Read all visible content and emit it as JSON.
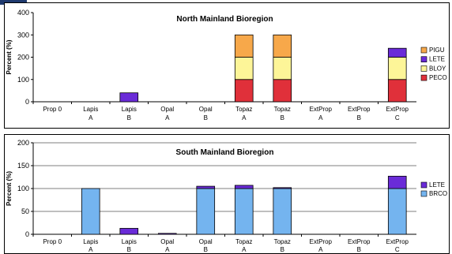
{
  "chart_data": [
    {
      "type": "bar",
      "stacked": true,
      "title": "North Mainland Bioregion",
      "ylabel": "Percent (%)",
      "ylim": [
        0,
        400
      ],
      "yticks": [
        0,
        100,
        200,
        300,
        400
      ],
      "categories": [
        [
          "Prop 0"
        ],
        [
          "Lapis",
          "A"
        ],
        [
          "Lapis",
          "B"
        ],
        [
          "Opal",
          "A"
        ],
        [
          "Opal",
          "B"
        ],
        [
          "Topaz",
          "A"
        ],
        [
          "Topaz",
          "B"
        ],
        [
          "ExtProp",
          "A"
        ],
        [
          "ExtProp",
          "B"
        ],
        [
          "ExtProp",
          "C"
        ]
      ],
      "series": [
        {
          "name": "PECO",
          "color": "#e0303a",
          "values": [
            0,
            0,
            0,
            0,
            0,
            100,
            100,
            0,
            0,
            100
          ]
        },
        {
          "name": "BLOY",
          "color": "#fdf598",
          "values": [
            0,
            0,
            0,
            0,
            0,
            100,
            100,
            0,
            0,
            100
          ]
        },
        {
          "name": "LETE",
          "color": "#6a2bd8",
          "values": [
            0,
            0,
            40,
            0,
            0,
            0,
            0,
            0,
            0,
            40
          ]
        },
        {
          "name": "PIGU",
          "color": "#f7a84a",
          "values": [
            0,
            0,
            0,
            0,
            0,
            100,
            100,
            0,
            0,
            0
          ]
        }
      ],
      "legend_order": [
        "PIGU",
        "LETE",
        "BLOY",
        "PECO"
      ],
      "legend_position": "right",
      "grid": false,
      "plot_background": "#ffffff"
    },
    {
      "type": "bar",
      "stacked": true,
      "title": "South Mainland Bioregion",
      "ylabel": "Percent (%)",
      "ylim": [
        0,
        200
      ],
      "yticks": [
        0,
        50,
        100,
        150,
        200
      ],
      "categories": [
        [
          "Prop 0"
        ],
        [
          "Lapis",
          "A"
        ],
        [
          "Lapis",
          "B"
        ],
        [
          "Opal",
          "A"
        ],
        [
          "Opal",
          "B"
        ],
        [
          "Topaz",
          "A"
        ],
        [
          "Topaz",
          "B"
        ],
        [
          "ExtProp",
          "A"
        ],
        [
          "ExtProp",
          "B"
        ],
        [
          "ExtProp",
          "C"
        ]
      ],
      "series": [
        {
          "name": "BRCO",
          "color": "#74b4ef",
          "values": [
            0,
            100,
            0,
            0,
            100,
            100,
            100,
            0,
            0,
            100
          ]
        },
        {
          "name": "LETE",
          "color": "#6a2bd8",
          "values": [
            0,
            0,
            13,
            2,
            5,
            7,
            2,
            0,
            0,
            27
          ]
        }
      ],
      "legend_order": [
        "LETE",
        "BRCO"
      ],
      "legend_position": "right",
      "grid": true,
      "plot_background": "#ffffff"
    }
  ]
}
